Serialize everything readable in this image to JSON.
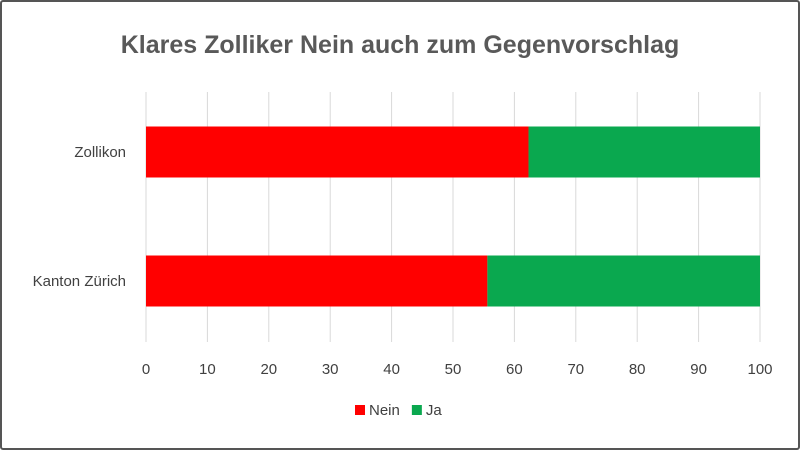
{
  "chart_data": {
    "type": "bar",
    "orientation": "horizontal",
    "stacked": true,
    "title": "Klares Zolliker Nein auch zum Gegenvorschlag",
    "categories": [
      "Zollikon",
      "Kanton Zürich"
    ],
    "series": [
      {
        "name": "Nein",
        "values": [
          62.3,
          55.6
        ],
        "color": "#ff0000"
      },
      {
        "name": "Ja",
        "values": [
          37.7,
          44.4
        ],
        "color": "#0aa84f"
      }
    ],
    "xlim": [
      0,
      100
    ],
    "xticks": [
      "0",
      "10",
      "20",
      "30",
      "40",
      "50",
      "60",
      "70",
      "80",
      "90",
      "100"
    ],
    "grid": true,
    "legend_position": "bottom"
  }
}
